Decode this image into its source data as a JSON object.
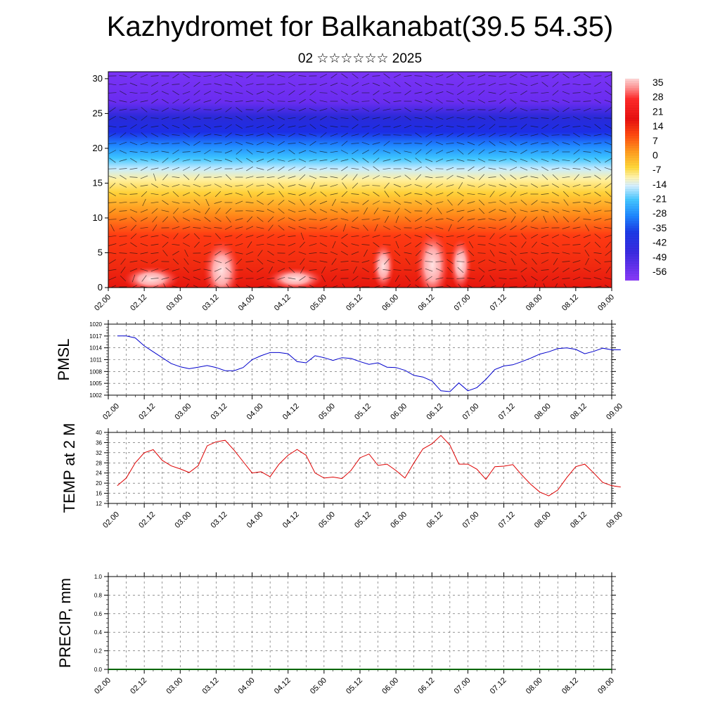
{
  "title": "Kazhydromet for Balkanabat(39.5 54.35)",
  "subtitle": "02 ☆☆☆☆☆☆ 2025",
  "colors": {
    "pmsl_line": "#0000cc",
    "temp_line": "#dd0000",
    "precip_line": "#006600"
  },
  "chart_data": [
    {
      "type": "heatmap",
      "name": "vertical-section",
      "x_ticks": [
        "02.00",
        "02.12",
        "03.00",
        "03.12",
        "04.00",
        "04.12",
        "05.00",
        "05.12",
        "06.00",
        "06.12",
        "07.00",
        "07.12",
        "08.00",
        "08.12",
        "09.00"
      ],
      "y_ticks": [
        "0",
        "5",
        "10",
        "15",
        "20",
        "25",
        "30"
      ],
      "ylim": [
        0,
        31
      ],
      "colorbar_labels": [
        "35",
        "28",
        "21",
        "14",
        "7",
        "0",
        "-7",
        "-14",
        "-21",
        "-28",
        "-35",
        "-42",
        "-49",
        "-56"
      ],
      "colorbar_range": [
        -60,
        38
      ]
    },
    {
      "type": "line",
      "name": "pmsl",
      "ylabel": "PMSL",
      "ylim": [
        1002,
        1020
      ],
      "y_ticks": [
        "1002",
        "1005",
        "1008",
        "1011",
        "1014",
        "1017",
        "1020"
      ],
      "x_ticks": [
        "02.00",
        "02.12",
        "03.00",
        "03.12",
        "04.00",
        "04.12",
        "05.00",
        "05.12",
        "06.00",
        "06.12",
        "07.00",
        "07.12",
        "08.00",
        "08.12",
        "09.00"
      ],
      "x": [
        0,
        3,
        6,
        9,
        12,
        15,
        18,
        21,
        24,
        27,
        30,
        33,
        36,
        39,
        42,
        45,
        48,
        51,
        54,
        57,
        60,
        63,
        66,
        69,
        72,
        75,
        78,
        81,
        84,
        87,
        90,
        93,
        96,
        99,
        102,
        105,
        108,
        111,
        114,
        117,
        120,
        123,
        126,
        129,
        132,
        135,
        138,
        141,
        144,
        147,
        150,
        153,
        156,
        159,
        162,
        165,
        168
      ],
      "values": [
        1017,
        1017,
        1016.5,
        1014.5,
        1013,
        1011.5,
        1010,
        1009.2,
        1008.7,
        1009.1,
        1009.5,
        1009,
        1008.2,
        1008.2,
        1009,
        1011,
        1012,
        1012.8,
        1012.8,
        1012.5,
        1010.5,
        1010.2,
        1012,
        1011.5,
        1010.8,
        1011.5,
        1011.3,
        1010.5,
        1009.8,
        1010.2,
        1009.1,
        1009,
        1008.3,
        1007,
        1006.6,
        1005.6,
        1003.1,
        1002.9,
        1005.1,
        1003.1,
        1003.9,
        1006,
        1008.5,
        1009.4,
        1009.7,
        1010.5,
        1011.4,
        1012.4,
        1013,
        1013.8,
        1014,
        1013.6,
        1012.5,
        1013.1,
        1013.9,
        1013.5,
        1013.5
      ]
    },
    {
      "type": "line",
      "name": "temp",
      "ylabel": "TEMP at 2 M",
      "ylim": [
        12,
        40
      ],
      "y_ticks": [
        "12",
        "16",
        "20",
        "24",
        "28",
        "32",
        "36",
        "40"
      ],
      "x_ticks": [
        "02.00",
        "02.12",
        "03.00",
        "03.12",
        "04.00",
        "04.12",
        "05.00",
        "05.12",
        "06.00",
        "06.12",
        "07.00",
        "07.12",
        "08.00",
        "08.12",
        "09.00"
      ],
      "x": [
        0,
        3,
        6,
        9,
        12,
        15,
        18,
        21,
        24,
        27,
        30,
        33,
        36,
        39,
        42,
        45,
        48,
        51,
        54,
        57,
        60,
        63,
        66,
        69,
        72,
        75,
        78,
        81,
        84,
        87,
        90,
        93,
        96,
        99,
        102,
        105,
        108,
        111,
        114,
        117,
        120,
        123,
        126,
        129,
        132,
        135,
        138,
        141,
        144,
        147,
        150,
        153,
        156,
        159,
        162,
        165,
        168
      ],
      "values": [
        19,
        22,
        28,
        32,
        33.2,
        29,
        26.8,
        25.6,
        24.2,
        26.9,
        34.7,
        36.3,
        36.9,
        33,
        28.5,
        24,
        24.5,
        22.5,
        27.5,
        31,
        33.3,
        31,
        24,
        22,
        22.4,
        21.8,
        25,
        30,
        31.5,
        27,
        27.5,
        25,
        22,
        28,
        33.5,
        35.5,
        38.8,
        35,
        27.5,
        27.5,
        25.5,
        21.5,
        26.5,
        26.7,
        27.3,
        23.2,
        19.5,
        16.5,
        15,
        17.3,
        22.2,
        26.5,
        27.5,
        24,
        20.3,
        19,
        18.5
      ]
    },
    {
      "type": "line",
      "name": "precip",
      "ylabel": "PRECIP, mm",
      "ylim": [
        0,
        1
      ],
      "y_ticks": [
        "0.0",
        "0.2",
        "0.4",
        "0.6",
        "0.8",
        "1.0"
      ],
      "x_ticks": [
        "02.00",
        "02.12",
        "03.00",
        "03.12",
        "04.00",
        "04.12",
        "05.00",
        "05.12",
        "06.00",
        "06.12",
        "07.00",
        "07.12",
        "08.00",
        "08.12",
        "09.00"
      ],
      "x": [
        0,
        168
      ],
      "values": [
        0,
        0
      ]
    }
  ]
}
